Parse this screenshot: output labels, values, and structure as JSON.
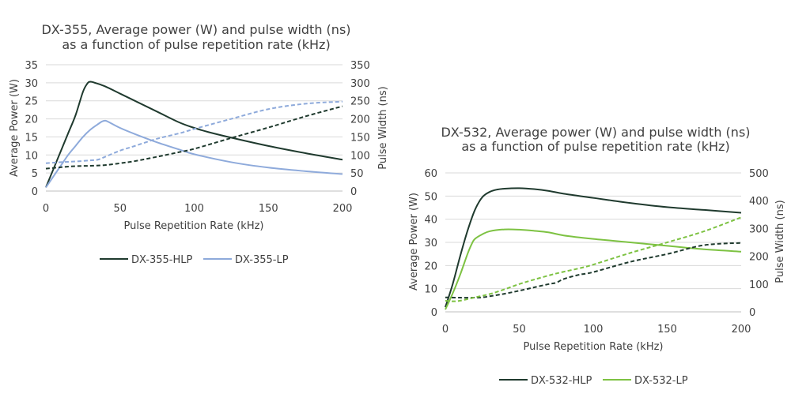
{
  "chart_data": [
    {
      "type": "line",
      "title": [
        "DX-355, Average power (W) and pulse width (ns)",
        "as a function of pulse repetition rate (kHz)"
      ],
      "xlabel": "Pulse Repetition Rate (kHz)",
      "ylabel": "Average Power (W)",
      "y2label": "Pulse Width (ns)",
      "xlim": [
        0,
        200
      ],
      "ylim": [
        0,
        35
      ],
      "y2lim": [
        0,
        350
      ],
      "xticks": [
        "0",
        "50",
        "100",
        "150",
        "200"
      ],
      "yticks": [
        "0",
        "5",
        "10",
        "15",
        "20",
        "25",
        "30",
        "35"
      ],
      "y2ticks": [
        "0",
        "50",
        "100",
        "150",
        "200",
        "250",
        "300",
        "350"
      ],
      "grid": true,
      "legend_position": "bottom",
      "series": [
        {
          "name": "DX-355-HLP",
          "color": "#1f3a2e",
          "axis": "left",
          "style": "solid",
          "x": [
            0,
            5,
            10,
            15,
            20,
            25,
            28,
            30,
            33,
            40,
            50,
            60,
            75,
            90,
            100,
            110,
            125,
            150,
            175,
            200
          ],
          "y": [
            1.0,
            6.0,
            11.0,
            16.0,
            21.0,
            27.5,
            29.8,
            30.3,
            30.0,
            29.0,
            27.0,
            25.0,
            22.0,
            19.0,
            17.5,
            16.3,
            14.8,
            12.5,
            10.5,
            8.7
          ]
        },
        {
          "name": "DX-355-LP",
          "color": "#8eaadb",
          "axis": "left",
          "style": "solid",
          "x": [
            0,
            5,
            10,
            15,
            20,
            25,
            30,
            35,
            38,
            40,
            42,
            50,
            60,
            75,
            90,
            100,
            125,
            150,
            175,
            200
          ],
          "y": [
            1.0,
            4.0,
            7.0,
            10.0,
            12.5,
            15.0,
            17.0,
            18.5,
            19.3,
            19.5,
            19.2,
            17.5,
            15.8,
            13.5,
            11.5,
            10.2,
            8.0,
            6.5,
            5.5,
            4.7
          ]
        },
        {
          "name": "",
          "color": "#1f3a2e",
          "axis": "right",
          "style": "dashed",
          "x": [
            0,
            10,
            20,
            30,
            40,
            50,
            60,
            75,
            90,
            100,
            125,
            150,
            175,
            200
          ],
          "y": [
            62,
            66,
            69,
            70,
            72,
            77,
            83,
            95,
            108,
            117,
            147,
            176,
            207,
            235
          ]
        },
        {
          "name": "",
          "color": "#8eaadb",
          "axis": "right",
          "style": "dashed",
          "x": [
            0,
            10,
            20,
            30,
            35,
            40,
            50,
            60,
            75,
            90,
            100,
            125,
            150,
            175,
            200
          ],
          "y": [
            77,
            80,
            82,
            85,
            87,
            95,
            112,
            125,
            145,
            160,
            172,
            200,
            227,
            242,
            248
          ]
        }
      ]
    },
    {
      "type": "line",
      "title": [
        "DX-532, Average power (W) and pulse width (ns)",
        "as a function of pulse repetition rate (kHz)"
      ],
      "xlabel": "Pulse Repetition Rate (kHz)",
      "ylabel": "Average Power (W)",
      "y2label": "Pulse Width (ns)",
      "xlim": [
        0,
        200
      ],
      "ylim": [
        0,
        60
      ],
      "y2lim": [
        0,
        500
      ],
      "xticks": [
        "0",
        "50",
        "100",
        "150",
        "200"
      ],
      "yticks": [
        "0",
        "10",
        "20",
        "30",
        "40",
        "50",
        "60"
      ],
      "y2ticks": [
        "0",
        "100",
        "200",
        "300",
        "400",
        "500"
      ],
      "grid": true,
      "legend_position": "bottom",
      "series": [
        {
          "name": "DX-532-HLP",
          "color": "#1f3a2e",
          "axis": "left",
          "style": "solid",
          "x": [
            0,
            5,
            10,
            15,
            20,
            25,
            30,
            35,
            40,
            50,
            60,
            70,
            80,
            100,
            125,
            150,
            175,
            200
          ],
          "y": [
            2,
            12,
            24,
            35,
            44,
            49.5,
            51.8,
            52.8,
            53.2,
            53.4,
            53.0,
            52.2,
            51.0,
            49.2,
            47.0,
            45.2,
            44.0,
            42.8
          ]
        },
        {
          "name": "DX-532-LP",
          "color": "#7dc242",
          "axis": "left",
          "style": "solid",
          "x": [
            0,
            5,
            10,
            15,
            18,
            20,
            25,
            30,
            40,
            50,
            60,
            70,
            80,
            100,
            125,
            150,
            175,
            200
          ],
          "y": [
            1,
            8,
            16,
            25,
            29.5,
            31.5,
            33.5,
            34.8,
            35.6,
            35.5,
            35.0,
            34.3,
            33.0,
            31.5,
            30.0,
            28.5,
            27.0,
            26.0
          ]
        },
        {
          "name": "",
          "color": "#1f3a2e",
          "axis": "right",
          "style": "dashed",
          "x": [
            0,
            10,
            20,
            25,
            30,
            40,
            50,
            60,
            70,
            75,
            80,
            90,
            100,
            125,
            150,
            175,
            200
          ],
          "y": [
            52,
            51,
            51,
            52,
            56,
            65,
            76,
            88,
            100,
            105,
            118,
            133,
            143,
            180,
            208,
            240,
            248
          ]
        },
        {
          "name": "",
          "color": "#7dc242",
          "axis": "right",
          "style": "dashed",
          "x": [
            0,
            5,
            10,
            20,
            30,
            40,
            50,
            60,
            75,
            90,
            100,
            125,
            150,
            175,
            200
          ],
          "y": [
            40,
            38,
            40,
            52,
            64,
            81,
            100,
            116,
            138,
            156,
            170,
            212,
            250,
            290,
            340
          ]
        }
      ]
    }
  ]
}
